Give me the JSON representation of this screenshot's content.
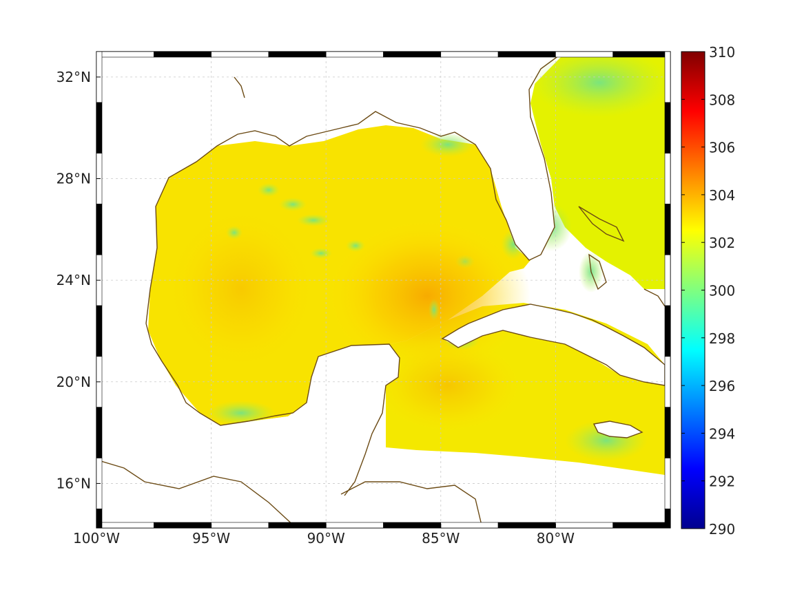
{
  "map": {
    "projection": "lon-lat",
    "lon_range": [
      -100,
      -75
    ],
    "lat_range": [
      14.25,
      33
    ],
    "x_ticks": [
      {
        "value": -100,
        "label": "100°W"
      },
      {
        "value": -95,
        "label": "95°W"
      },
      {
        "value": -90,
        "label": "90°W"
      },
      {
        "value": -85,
        "label": "85°W"
      },
      {
        "value": -80,
        "label": "80°W"
      }
    ],
    "y_ticks": [
      {
        "value": 32,
        "label": "32°N"
      },
      {
        "value": 28,
        "label": "28°N"
      },
      {
        "value": 24,
        "label": "24°N"
      },
      {
        "value": 20,
        "label": "20°N"
      },
      {
        "value": 16,
        "label": "16°N"
      }
    ],
    "grid": true,
    "coastline_color": "#6b4a14",
    "frame": "black-white checkered border"
  },
  "colorbar": {
    "min": 290,
    "max": 310,
    "colormap": "jet",
    "placement": "right",
    "ticks": [
      {
        "value": 310,
        "label": "310"
      },
      {
        "value": 308,
        "label": "308"
      },
      {
        "value": 306,
        "label": "306"
      },
      {
        "value": 304,
        "label": "304"
      },
      {
        "value": 302,
        "label": "302"
      },
      {
        "value": 300,
        "label": "300"
      },
      {
        "value": 298,
        "label": "298"
      },
      {
        "value": 296,
        "label": "296"
      },
      {
        "value": 294,
        "label": "294"
      },
      {
        "value": 292,
        "label": "292"
      },
      {
        "value": 290,
        "label": "290"
      }
    ]
  }
}
